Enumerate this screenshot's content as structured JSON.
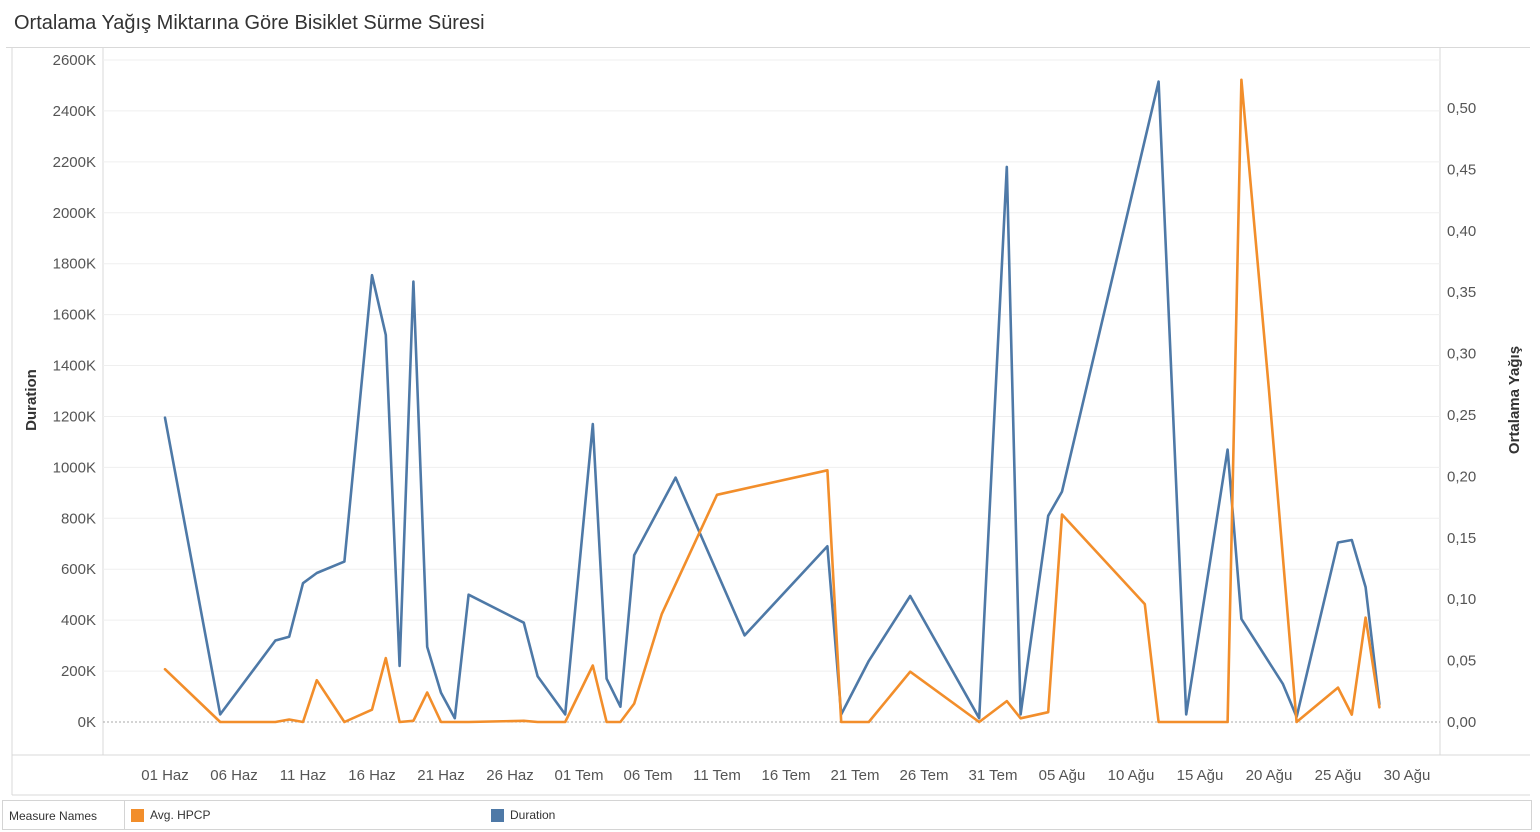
{
  "title": "Ortalama Yağış Miktarına Göre Bisiklet Sürme Süresi",
  "legend": {
    "header": "Measure Names",
    "items": [
      {
        "label": "Avg. HPCP",
        "color": "#f28e2b"
      },
      {
        "label": "Duration",
        "color": "#4e79a7"
      }
    ]
  },
  "chart_data": {
    "type": "line",
    "xlabel": "",
    "x_tick_labels": [
      "01 Haz",
      "06 Haz",
      "11 Haz",
      "16 Haz",
      "21 Haz",
      "26 Haz",
      "01 Tem",
      "06 Tem",
      "11 Tem",
      "16 Tem",
      "21 Tem",
      "26 Tem",
      "31 Tem",
      "05 Ağu",
      "10 Ağu",
      "15 Ağu",
      "20 Ağu",
      "25 Ağu",
      "30 Ağu"
    ],
    "x_start": "2016-06-01",
    "ylabel_left": "Duration",
    "ylabel_right": "Ortalama Yağış",
    "y_left_ticks": [
      "0K",
      "200K",
      "400K",
      "600K",
      "800K",
      "1000K",
      "1200K",
      "1400K",
      "1600K",
      "1800K",
      "2000K",
      "2200K",
      "2400K",
      "2600K"
    ],
    "y_left_range": [
      0,
      2600000
    ],
    "y_right_ticks": [
      "0,00",
      "0,05",
      "0,10",
      "0,15",
      "0,20",
      "0,25",
      "0,30",
      "0,35",
      "0,40",
      "0,45",
      "0,50"
    ],
    "y_right_range": [
      0,
      0.54
    ],
    "grid": true,
    "legend_position": "bottom",
    "series": [
      {
        "name": "Duration",
        "axis": "left",
        "color": "#4e79a7",
        "points": [
          [
            "2016-06-01",
            1195000
          ],
          [
            "2016-06-05",
            30000
          ],
          [
            "2016-06-09",
            320000
          ],
          [
            "2016-06-10",
            335000
          ],
          [
            "2016-06-11",
            545000
          ],
          [
            "2016-06-12",
            585000
          ],
          [
            "2016-06-14",
            630000
          ],
          [
            "2016-06-16",
            1755000
          ],
          [
            "2016-06-17",
            1520000
          ],
          [
            "2016-06-18",
            220000
          ],
          [
            "2016-06-19",
            1730000
          ],
          [
            "2016-06-20",
            295000
          ],
          [
            "2016-06-21",
            115000
          ],
          [
            "2016-06-22",
            15000
          ],
          [
            "2016-06-23",
            500000
          ],
          [
            "2016-06-27",
            390000
          ],
          [
            "2016-06-28",
            180000
          ],
          [
            "2016-06-30",
            30000
          ],
          [
            "2016-07-02",
            1170000
          ],
          [
            "2016-07-03",
            170000
          ],
          [
            "2016-07-04",
            60000
          ],
          [
            "2016-07-05",
            655000
          ],
          [
            "2016-07-08",
            960000
          ],
          [
            "2016-07-13",
            340000
          ],
          [
            "2016-07-19",
            690000
          ],
          [
            "2016-07-20",
            30000
          ],
          [
            "2016-07-22",
            240000
          ],
          [
            "2016-07-25",
            495000
          ],
          [
            "2016-07-30",
            15000
          ],
          [
            "2016-08-01",
            2180000
          ],
          [
            "2016-08-02",
            30000
          ],
          [
            "2016-08-04",
            810000
          ],
          [
            "2016-08-05",
            905000
          ],
          [
            "2016-08-12",
            2515000
          ],
          [
            "2016-08-14",
            30000
          ],
          [
            "2016-08-17",
            1070000
          ],
          [
            "2016-08-18",
            405000
          ],
          [
            "2016-08-21",
            150000
          ],
          [
            "2016-08-22",
            20000
          ],
          [
            "2016-08-25",
            705000
          ],
          [
            "2016-08-26",
            715000
          ],
          [
            "2016-08-27",
            530000
          ],
          [
            "2016-08-28",
            70000
          ]
        ]
      },
      {
        "name": "Avg. HPCP",
        "axis": "right",
        "color": "#f28e2b",
        "points": [
          [
            "2016-06-01",
            0.043
          ],
          [
            "2016-06-05",
            0.0
          ],
          [
            "2016-06-09",
            0.0
          ],
          [
            "2016-06-10",
            0.002
          ],
          [
            "2016-06-11",
            0.0
          ],
          [
            "2016-06-12",
            0.034
          ],
          [
            "2016-06-14",
            0.0
          ],
          [
            "2016-06-16",
            0.01
          ],
          [
            "2016-06-17",
            0.052
          ],
          [
            "2016-06-18",
            0.0
          ],
          [
            "2016-06-19",
            0.001
          ],
          [
            "2016-06-20",
            0.024
          ],
          [
            "2016-06-21",
            0.0
          ],
          [
            "2016-06-23",
            0.0
          ],
          [
            "2016-06-27",
            0.001
          ],
          [
            "2016-06-28",
            0.0
          ],
          [
            "2016-06-30",
            0.0
          ],
          [
            "2016-07-02",
            0.046
          ],
          [
            "2016-07-03",
            0.0
          ],
          [
            "2016-07-04",
            0.0
          ],
          [
            "2016-07-05",
            0.015
          ],
          [
            "2016-07-07",
            0.088
          ],
          [
            "2016-07-11",
            0.185
          ],
          [
            "2016-07-19",
            0.205
          ],
          [
            "2016-07-20",
            0.0
          ],
          [
            "2016-07-22",
            0.0
          ],
          [
            "2016-07-25",
            0.041
          ],
          [
            "2016-07-30",
            0.0
          ],
          [
            "2016-08-01",
            0.017
          ],
          [
            "2016-08-02",
            0.003
          ],
          [
            "2016-08-04",
            0.008
          ],
          [
            "2016-08-05",
            0.169
          ],
          [
            "2016-08-11",
            0.096
          ],
          [
            "2016-08-12",
            0.0
          ],
          [
            "2016-08-14",
            0.0
          ],
          [
            "2016-08-17",
            0.0
          ],
          [
            "2016-08-18",
            0.523
          ],
          [
            "2016-08-20",
            0.27
          ],
          [
            "2016-08-22",
            0.0
          ],
          [
            "2016-08-25",
            0.028
          ],
          [
            "2016-08-26",
            0.006
          ],
          [
            "2016-08-27",
            0.085
          ],
          [
            "2016-08-28",
            0.012
          ]
        ]
      }
    ]
  }
}
